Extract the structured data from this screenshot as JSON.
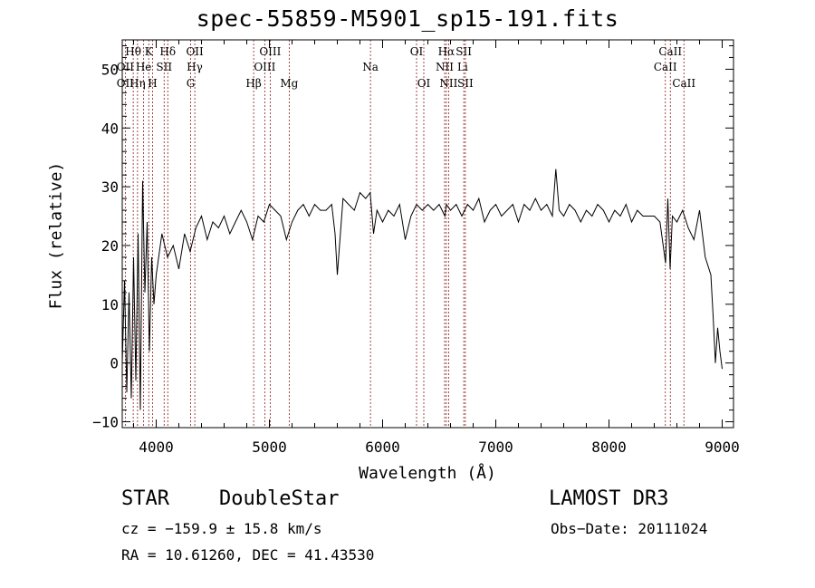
{
  "chart_data": {
    "type": "line",
    "title": "spec-55859-M5901_sp15-191.fits",
    "xlabel": "Wavelength (Å)",
    "ylabel": "Flux (relative)",
    "xlim": [
      3700,
      9100
    ],
    "ylim": [
      -11,
      55
    ],
    "xticks": [
      4000,
      5000,
      6000,
      7000,
      8000,
      9000
    ],
    "yticks": [
      -10,
      0,
      10,
      20,
      30,
      40,
      50
    ],
    "series": [
      {
        "name": "flux",
        "color": "#000000",
        "x": [
          3700,
          3720,
          3740,
          3760,
          3780,
          3800,
          3820,
          3840,
          3860,
          3880,
          3900,
          3920,
          3940,
          3960,
          3980,
          4000,
          4050,
          4100,
          4150,
          4200,
          4250,
          4300,
          4350,
          4400,
          4450,
          4500,
          4550,
          4600,
          4650,
          4700,
          4750,
          4800,
          4850,
          4900,
          4950,
          5000,
          5050,
          5100,
          5150,
          5200,
          5250,
          5300,
          5350,
          5400,
          5450,
          5500,
          5550,
          5580,
          5600,
          5650,
          5700,
          5750,
          5800,
          5850,
          5890,
          5920,
          5950,
          6000,
          6050,
          6100,
          6150,
          6200,
          6250,
          6300,
          6350,
          6400,
          6450,
          6500,
          6550,
          6563,
          6600,
          6650,
          6700,
          6750,
          6800,
          6850,
          6900,
          6950,
          7000,
          7050,
          7100,
          7150,
          7200,
          7250,
          7300,
          7350,
          7400,
          7450,
          7500,
          7530,
          7560,
          7600,
          7650,
          7700,
          7750,
          7800,
          7850,
          7900,
          7950,
          8000,
          8050,
          8100,
          8150,
          8200,
          8250,
          8300,
          8350,
          8400,
          8450,
          8500,
          8520,
          8540,
          8560,
          8600,
          8650,
          8700,
          8750,
          8800,
          8850,
          8900,
          8920,
          8940,
          8960,
          8980,
          9000
        ],
        "values": [
          0,
          14,
          -5,
          12,
          -6,
          18,
          -3,
          22,
          -8,
          31,
          12,
          24,
          2,
          18,
          10,
          15,
          22,
          18,
          20,
          16,
          22,
          19,
          23,
          25,
          21,
          24,
          23,
          25,
          22,
          24,
          26,
          24,
          21,
          25,
          24,
          27,
          26,
          25,
          21,
          24,
          26,
          27,
          25,
          27,
          26,
          26,
          27,
          22,
          15,
          28,
          27,
          26,
          29,
          28,
          29,
          22,
          26,
          24,
          26,
          25,
          27,
          21,
          25,
          27,
          26,
          27,
          26,
          27,
          25,
          27,
          26,
          27,
          25,
          27,
          26,
          28,
          24,
          26,
          27,
          25,
          26,
          27,
          24,
          27,
          26,
          28,
          26,
          27,
          25,
          33,
          26,
          25,
          27,
          26,
          24,
          26,
          25,
          27,
          26,
          24,
          26,
          25,
          27,
          24,
          26,
          25,
          25,
          25,
          24,
          17,
          28,
          16,
          25,
          24,
          26,
          23,
          21,
          26,
          18,
          15,
          8,
          0,
          6,
          2,
          -1
        ]
      }
    ],
    "line_labels": [
      {
        "text": "Hθ",
        "x": 3797,
        "row": 0
      },
      {
        "text": "K",
        "x": 3934,
        "row": 0
      },
      {
        "text": "Hδ",
        "x": 4102,
        "row": 0
      },
      {
        "text": "OII",
        "x": 4341,
        "row": 0
      },
      {
        "text": "OIII",
        "x": 5007,
        "row": 0
      },
      {
        "text": "OI",
        "x": 6300,
        "row": 0
      },
      {
        "text": "Hα",
        "x": 6563,
        "row": 0
      },
      {
        "text": "SII",
        "x": 6717,
        "row": 0
      },
      {
        "text": "CaII",
        "x": 8542,
        "row": 0
      },
      {
        "text": "OII",
        "x": 3727,
        "row": 1
      },
      {
        "text": "He",
        "x": 3889,
        "row": 1
      },
      {
        "text": "SII",
        "x": 4070,
        "row": 1
      },
      {
        "text": "Hγ",
        "x": 4340,
        "row": 1
      },
      {
        "text": "OIII",
        "x": 4959,
        "row": 1
      },
      {
        "text": "Na",
        "x": 5893,
        "row": 1
      },
      {
        "text": "NII",
        "x": 6548,
        "row": 1
      },
      {
        "text": "Li",
        "x": 6707,
        "row": 1
      },
      {
        "text": "CaII",
        "x": 8498,
        "row": 1
      },
      {
        "text": "OII",
        "x": 3727,
        "row": 2
      },
      {
        "text": "Hη",
        "x": 3835,
        "row": 2
      },
      {
        "text": "H",
        "x": 3968,
        "row": 2
      },
      {
        "text": "G",
        "x": 4304,
        "row": 2
      },
      {
        "text": "Hβ",
        "x": 4861,
        "row": 2
      },
      {
        "text": "Mg",
        "x": 5175,
        "row": 2
      },
      {
        "text": "OI",
        "x": 6364,
        "row": 2
      },
      {
        "text": "NII",
        "x": 6583,
        "row": 2
      },
      {
        "text": "SII",
        "x": 6731,
        "row": 2
      },
      {
        "text": "CaII",
        "x": 8662,
        "row": 2
      }
    ],
    "line_marks": [
      3727,
      3797,
      3835,
      3889,
      3934,
      3968,
      4070,
      4102,
      4304,
      4341,
      4861,
      4959,
      5007,
      5175,
      5893,
      6300,
      6364,
      6548,
      6563,
      6583,
      6717,
      6731,
      8498,
      8542,
      8662
    ],
    "line_color": "#8b1a1a"
  },
  "info": {
    "class": "STAR",
    "subclass": "DoubleStar",
    "survey": "LAMOST DR3",
    "cz": "cz = −159.9 ± 15.8 km/s",
    "obs_date": "Obs−Date: 20111024",
    "radec": "RA =  10.61260, DEC =  41.43530"
  }
}
